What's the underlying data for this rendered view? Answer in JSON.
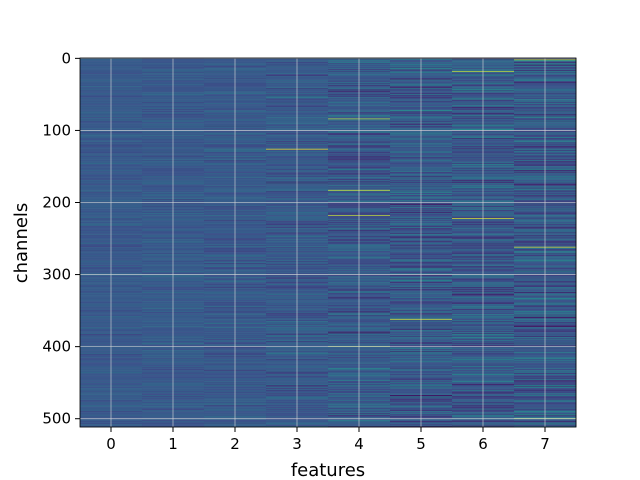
{
  "chart_data": {
    "type": "heatmap",
    "title": "",
    "xlabel": "features",
    "ylabel": "channels",
    "x_categories": [
      "0",
      "1",
      "2",
      "3",
      "4",
      "5",
      "6",
      "7"
    ],
    "y_range": [
      0,
      511
    ],
    "y_ticks": [
      "0",
      "100",
      "200",
      "300",
      "400",
      "500"
    ],
    "y_inverted": true,
    "colormap": "viridis",
    "grid": true,
    "colorbar": false,
    "description_note": "",
    "column_spread": [
      0.05,
      0.06,
      0.07,
      0.09,
      0.12,
      0.14,
      0.15,
      0.16
    ],
    "highlights": [
      {
        "feature": 3,
        "channel": 126,
        "value": 0.98
      },
      {
        "feature": 4,
        "channel": 84,
        "value": 0.88
      },
      {
        "feature": 4,
        "channel": 183,
        "value": 0.95
      },
      {
        "feature": 4,
        "channel": 218,
        "value": 0.9
      },
      {
        "feature": 4,
        "channel": 380,
        "value": 0.0
      },
      {
        "feature": 4,
        "channel": 400,
        "value": 0.85
      },
      {
        "feature": 5,
        "channel": 362,
        "value": 0.97
      },
      {
        "feature": 5,
        "channel": 468,
        "value": 0.0
      },
      {
        "feature": 6,
        "channel": 18,
        "value": 0.92
      },
      {
        "feature": 6,
        "channel": 222,
        "value": 0.95
      },
      {
        "feature": 7,
        "channel": 2,
        "value": 0.9
      },
      {
        "feature": 7,
        "channel": 262,
        "value": 0.92
      },
      {
        "feature": 7,
        "channel": 372,
        "value": 0.02
      },
      {
        "feature": 7,
        "channel": 500,
        "value": 0.9
      }
    ]
  }
}
